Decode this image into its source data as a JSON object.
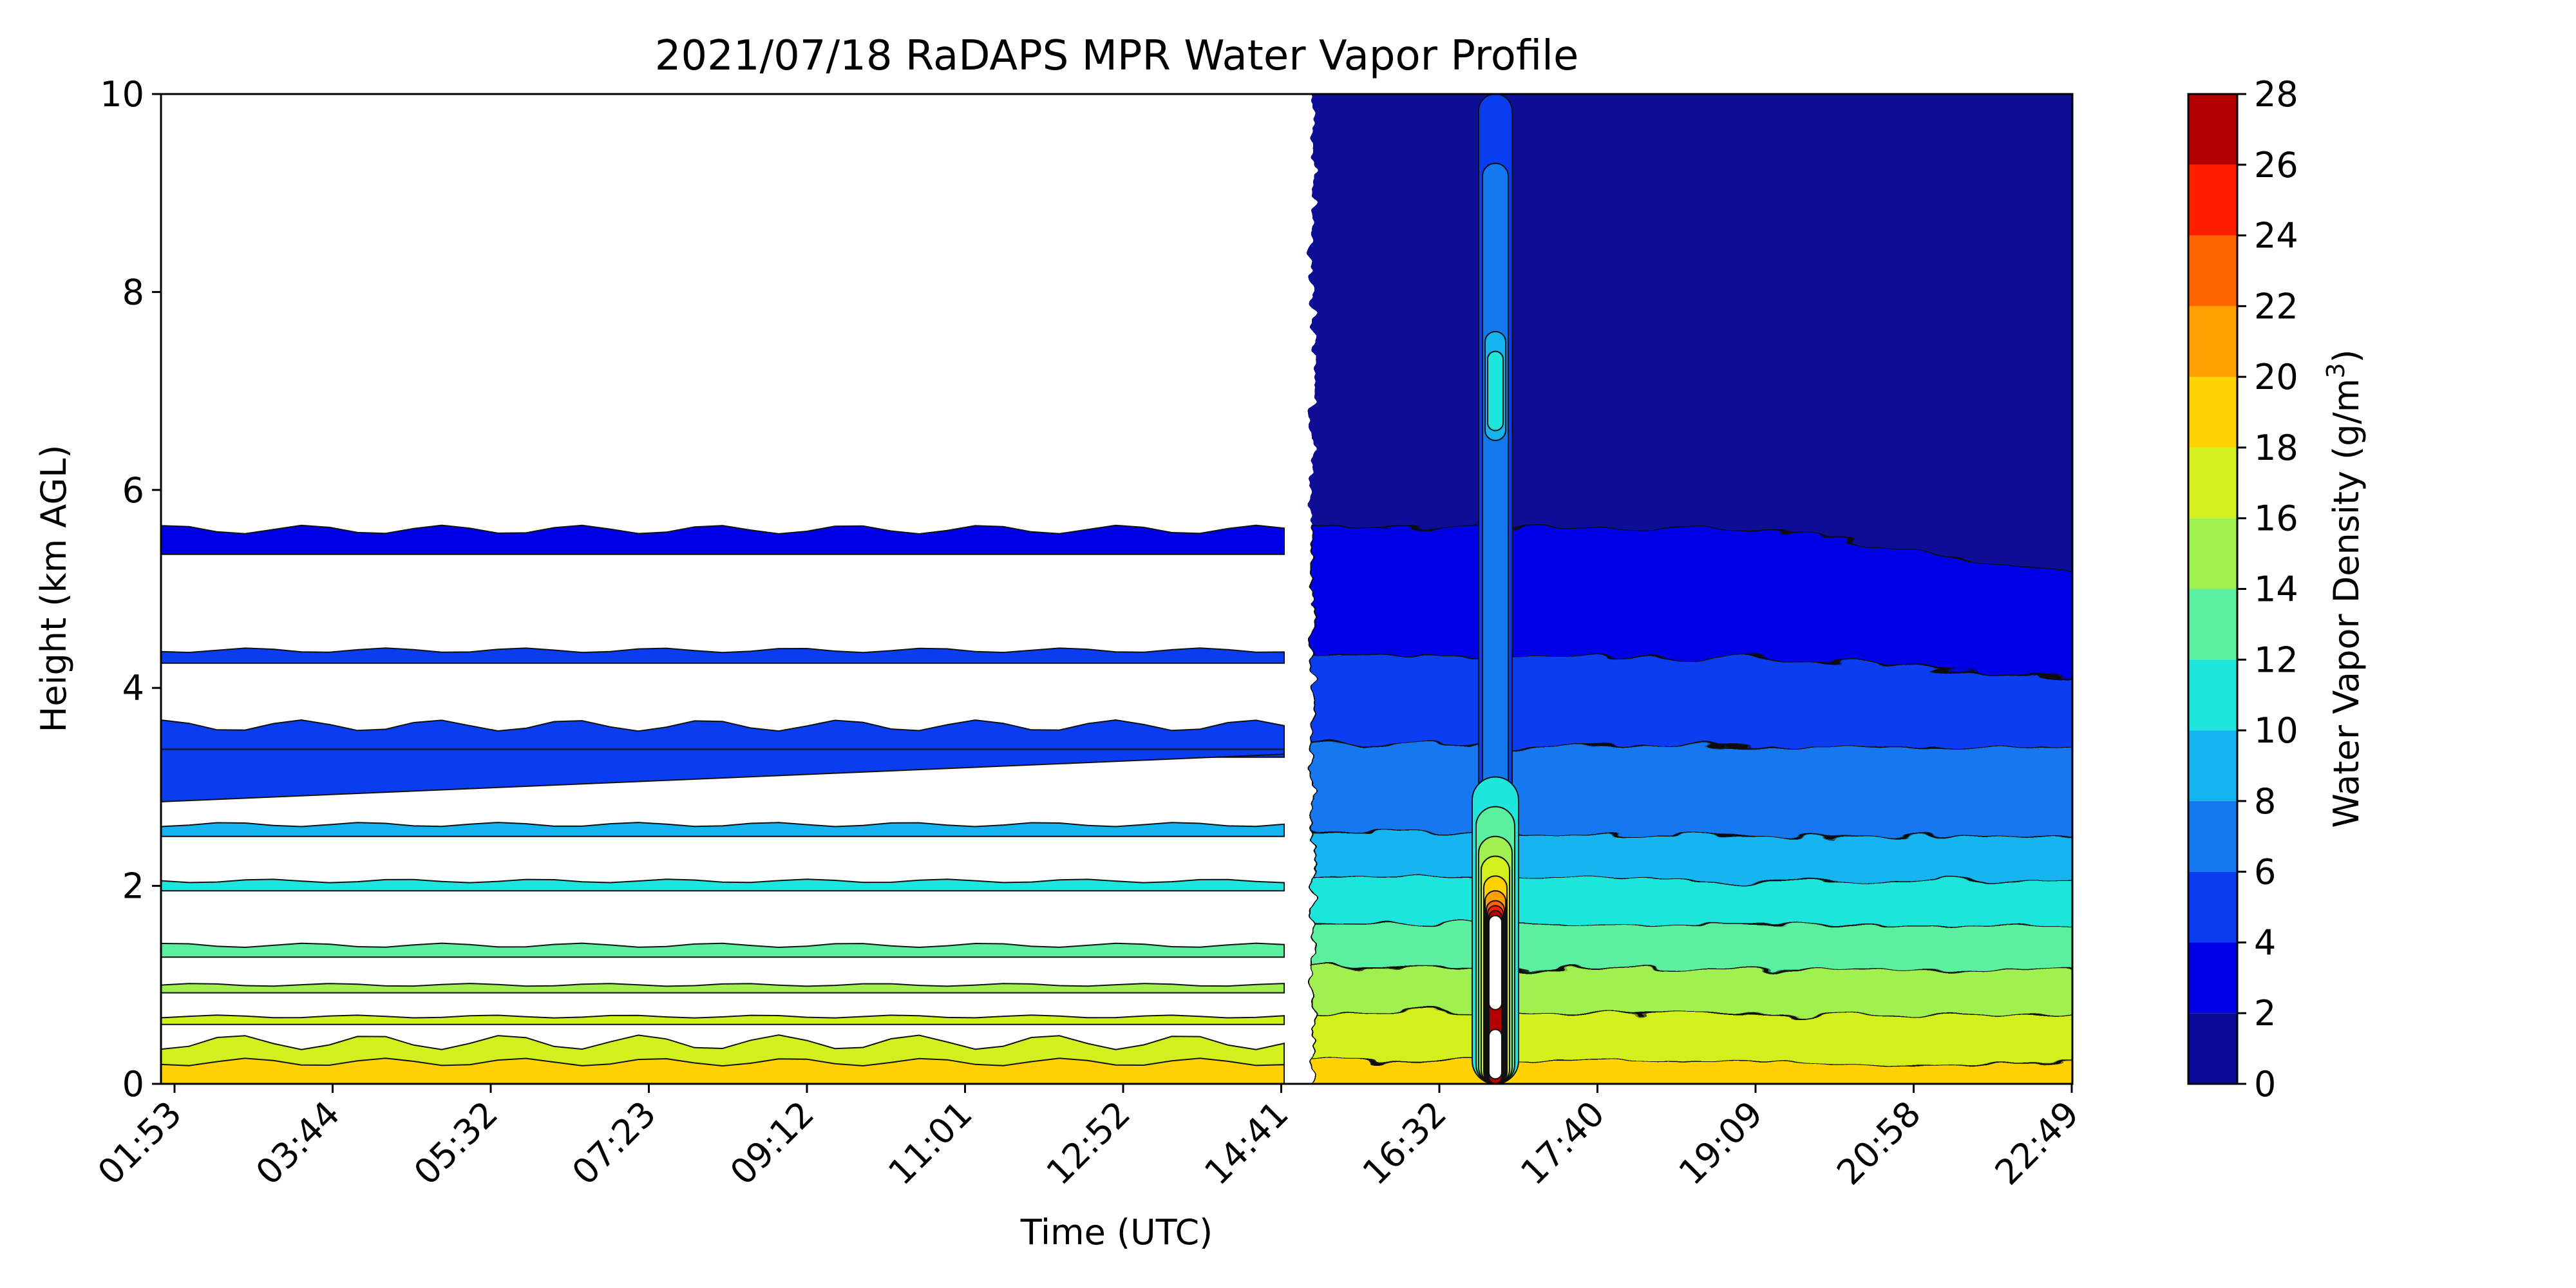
{
  "chart_data": {
    "type": "contour",
    "title": "2021/07/18 RaDAPS MPR Water Vapor Profile",
    "xlabel": "Time (UTC)",
    "ylabel": "Height (km AGL)",
    "colorbar_label": "Water Vapor Density (g/m",
    "colorbar_label_sup": "3",
    "colorbar_label_end": ")",
    "ylim": [
      0,
      10
    ],
    "yticks": [
      "0",
      "2",
      "4",
      "6",
      "8",
      "10"
    ],
    "xticks": [
      "01:53",
      "03:44",
      "05:32",
      "07:23",
      "09:12",
      "11:01",
      "12:52",
      "14:41",
      "16:32",
      "17:40",
      "19:09",
      "20:58",
      "22:49"
    ],
    "levels": [
      0,
      2,
      4,
      6,
      8,
      10,
      12,
      14,
      16,
      18,
      20,
      22,
      24,
      26,
      28
    ],
    "level_labels": [
      "0",
      "2",
      "4",
      "6",
      "8",
      "10",
      "12",
      "14",
      "16",
      "18",
      "20",
      "22",
      "24",
      "26",
      "28"
    ],
    "colors": [
      "#0a0a96",
      "#0000e6",
      "#0a3cf0",
      "#1478f0",
      "#14b4f0",
      "#1ee6dc",
      "#5af0a0",
      "#a0f050",
      "#d2f01e",
      "#ffd200",
      "#ffa000",
      "#ff6400",
      "#ff1e00",
      "#b40000"
    ],
    "gap_annotation": "sparse retrieval before ~15:00 UTC; continuous profile after",
    "profile_after_gap": [
      {
        "upper_height_km": 0.2,
        "level": "18–20"
      },
      {
        "upper_height_km": 0.7,
        "level": "16–18"
      },
      {
        "upper_height_km": 1.15,
        "level": "14–16"
      },
      {
        "upper_height_km": 1.6,
        "level": "12–14"
      },
      {
        "upper_height_km": 2.05,
        "level": "10–12"
      },
      {
        "upper_height_km": 2.5,
        "level": "8–10"
      },
      {
        "upper_height_km": 3.4,
        "level": "6–8"
      },
      {
        "upper_height_km": 4.3,
        "level": "4–6"
      },
      {
        "upper_height_km": 5.6,
        "level": "2–4"
      },
      {
        "upper_height_km": 10,
        "level": "0–2"
      }
    ]
  }
}
